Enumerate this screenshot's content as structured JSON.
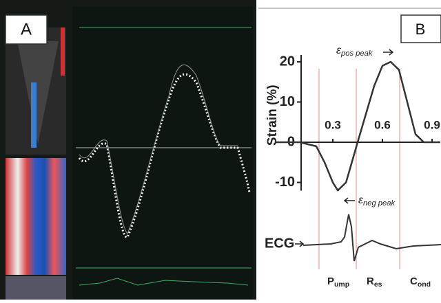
{
  "panels": [
    {
      "label": "A"
    },
    {
      "label": "B"
    }
  ],
  "chart_data": {
    "type": "line",
    "y_label": "Strain (%)",
    "x": [
      -0.05,
      0.1,
      0.2,
      0.25,
      0.3,
      0.33,
      0.38,
      0.45,
      0.5,
      0.55,
      0.6,
      0.65,
      0.7,
      0.75,
      0.8,
      0.85,
      0.95
    ],
    "series": [
      {
        "color": "#333333",
        "values": [
          0,
          0,
          -1,
          -5,
          -10,
          -12,
          -10,
          0,
          7,
          14,
          19,
          20,
          18,
          10,
          2,
          0,
          0
        ]
      }
    ],
    "xlim": [
      -0.1,
      0.95
    ],
    "ylim": [
      -15,
      25
    ],
    "xticks": [
      0.3,
      0.6,
      0.9
    ],
    "yticks": [
      20,
      10,
      0,
      -10
    ],
    "annotations": [
      {
        "base": "ε",
        "sub": "pos peak"
      },
      {
        "base": "ε",
        "sub": "neg peak"
      }
    ],
    "ecg_label": "ECG",
    "phases": [
      {
        "base": "P",
        "sub": "ump"
      },
      {
        "base": "R",
        "sub": "es"
      },
      {
        "base": "C",
        "sub": "ond"
      }
    ]
  }
}
